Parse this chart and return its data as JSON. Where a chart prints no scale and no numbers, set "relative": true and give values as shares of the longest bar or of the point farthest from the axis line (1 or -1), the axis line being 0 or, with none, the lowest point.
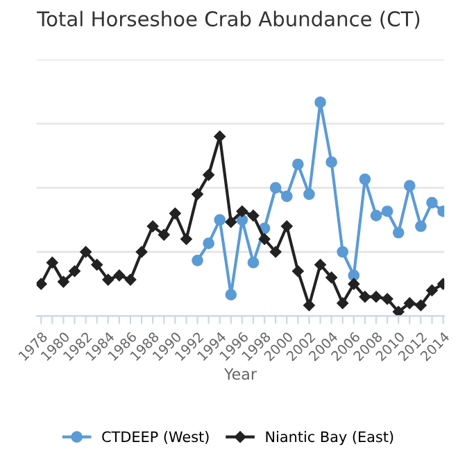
{
  "chart_data": {
    "type": "line",
    "title": "Total Horseshoe Crab Abundance (CT)",
    "xlabel": "Year",
    "relative": true,
    "x": [
      1978,
      1979,
      1980,
      1981,
      1982,
      1983,
      1984,
      1985,
      1986,
      1987,
      1988,
      1989,
      1990,
      1991,
      1992,
      1993,
      1994,
      1995,
      1996,
      1997,
      1998,
      1999,
      2000,
      2001,
      2002,
      2003,
      2004,
      2005,
      2006,
      2007,
      2008,
      2009,
      2010,
      2011,
      2012,
      2013,
      2014
    ],
    "xlim": [
      1977.6,
      2014.1
    ],
    "xticks": [
      1978,
      {
        "value": 1979,
        "label": null
      },
      1980,
      {
        "value": 1981,
        "label": null
      },
      1982,
      {
        "value": 1983,
        "label": null
      },
      1984,
      {
        "value": 1985,
        "label": null
      },
      1986,
      {
        "value": 1987,
        "label": null
      },
      1988,
      {
        "value": 1989,
        "label": null
      },
      1990,
      {
        "value": 1991,
        "label": null
      },
      1992,
      {
        "value": 1993,
        "label": null
      },
      1994,
      {
        "value": 1995,
        "label": null
      },
      1996,
      {
        "value": 1997,
        "label": null
      },
      1998,
      {
        "value": 1999,
        "label": null
      },
      2000,
      {
        "value": 2001,
        "label": null
      },
      2002,
      {
        "value": 2003,
        "label": null
      },
      2004,
      {
        "value": 2005,
        "label": null
      },
      2006,
      {
        "value": 2007,
        "label": null
      },
      2008,
      {
        "value": 2009,
        "label": null
      },
      2010,
      {
        "value": 2011,
        "label": null
      },
      2012,
      {
        "value": 2013,
        "label": null
      },
      2014
    ],
    "series": [
      {
        "name": "CTDEEP (West)",
        "color": "#5b9bd5",
        "marker": "circle",
        "values": [
          null,
          null,
          null,
          null,
          null,
          null,
          null,
          null,
          null,
          null,
          null,
          null,
          null,
          null,
          0.26,
          0.34,
          0.45,
          0.1,
          0.45,
          0.25,
          0.41,
          0.6,
          0.56,
          0.71,
          0.57,
          1,
          0.72,
          0.3,
          0.19,
          0.64,
          0.47,
          0.49,
          0.39,
          0.61,
          0.42,
          0.53,
          0.49
        ]
      },
      {
        "name": "Niantic Bay (East)",
        "color": "#222222",
        "marker": "diamond",
        "values": [
          0.15,
          0.25,
          0.16,
          0.21,
          0.3,
          0.24,
          0.17,
          0.19,
          0.17,
          0.3,
          0.42,
          0.38,
          0.48,
          0.36,
          0.57,
          0.66,
          0.84,
          0.44,
          0.49,
          0.47,
          0.36,
          0.3,
          0.42,
          0.21,
          0.05,
          0.24,
          0.18,
          0.06,
          0.15,
          0.09,
          0.09,
          0.08,
          0.02,
          0.06,
          0.05,
          0.12,
          0.15
        ]
      }
    ],
    "grid": "y",
    "legend": "bottom",
    "tick_labels": "x"
  }
}
